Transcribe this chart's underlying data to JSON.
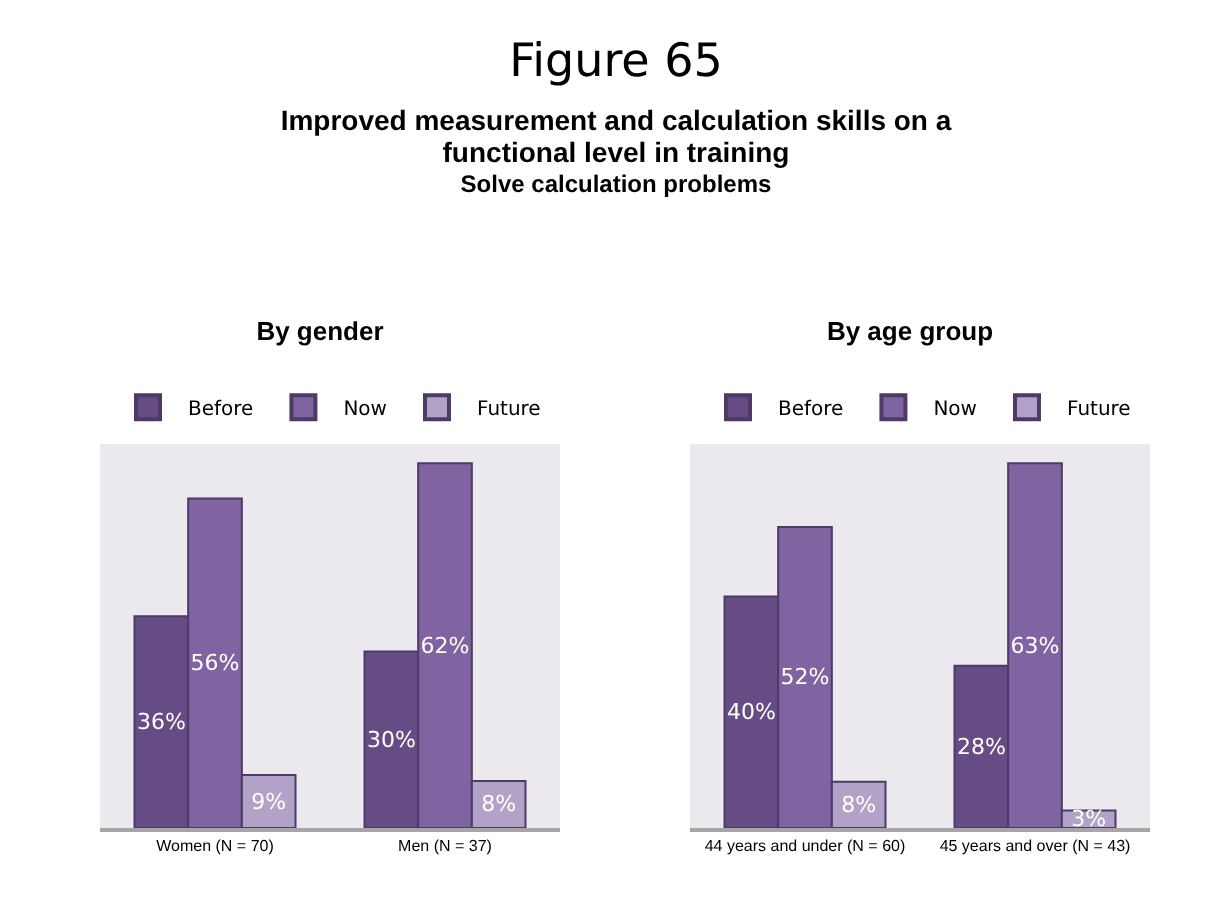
{
  "chart_data": [
    {
      "type": "bar",
      "title": "By gender",
      "annotations": [
        "Figure 65",
        "Improved measurement and calculation skills on a functional level in training",
        "Solve calculation problems"
      ],
      "categories": [
        "Women (N = 70)",
        "Men (N = 37)"
      ],
      "legend": "top",
      "series": [
        {
          "name": "Before",
          "color": "#664c85",
          "values": [
            36,
            30
          ],
          "value_labels": [
            "36%",
            "30%"
          ]
        },
        {
          "name": "Now",
          "color": "#8064a2",
          "values": [
            56,
            62
          ],
          "value_labels": [
            "56%",
            "62%"
          ]
        },
        {
          "name": "Future",
          "color": "#b3a2c7",
          "values": [
            9,
            8
          ],
          "value_labels": [
            "9%",
            "8%"
          ]
        }
      ]
    },
    {
      "type": "bar",
      "title": "By age group",
      "categories": [
        "44 years and under (N = 60)",
        "45 years and over (N = 43)"
      ],
      "legend": "top",
      "series": [
        {
          "name": "Before",
          "color": "#664c85",
          "values": [
            40,
            28
          ],
          "value_labels": [
            "40%",
            "28%"
          ]
        },
        {
          "name": "Now",
          "color": "#8064a2",
          "values": [
            52,
            63
          ],
          "value_labels": [
            "52%",
            "63%"
          ]
        },
        {
          "name": "Future",
          "color": "#b3a2c7",
          "values": [
            8,
            3
          ],
          "value_labels": [
            "8%",
            "3%"
          ]
        }
      ]
    }
  ]
}
